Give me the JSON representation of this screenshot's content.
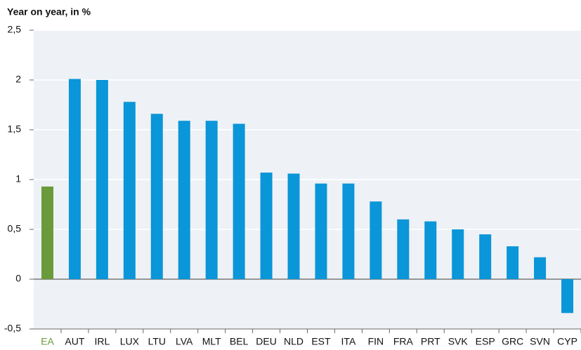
{
  "chart_data": {
    "type": "bar",
    "title": "Year on year, in %",
    "categories": [
      "EA",
      "AUT",
      "IRL",
      "LUX",
      "LTU",
      "LVA",
      "MLT",
      "BEL",
      "DEU",
      "NLD",
      "EST",
      "ITA",
      "FIN",
      "FRA",
      "PRT",
      "SVK",
      "ESP",
      "GRC",
      "SVN",
      "CYP"
    ],
    "values": [
      0.93,
      2.01,
      2.0,
      1.78,
      1.66,
      1.59,
      1.59,
      1.56,
      1.07,
      1.06,
      0.96,
      0.96,
      0.78,
      0.6,
      0.58,
      0.5,
      0.45,
      0.33,
      0.22,
      -0.34
    ],
    "color": "#0a96d8",
    "highlight": {
      "index": 0,
      "color": "#6b9a3a"
    },
    "ylim": [
      -0.5,
      2.5
    ],
    "yticks": [
      {
        "value": -0.5,
        "label": "-0,5"
      },
      0,
      {
        "value": 0.5,
        "label": "0,5"
      },
      1,
      {
        "value": 1.5,
        "label": "1,5"
      },
      2,
      {
        "value": 2.5,
        "label": "2,5"
      }
    ],
    "grid": true
  }
}
